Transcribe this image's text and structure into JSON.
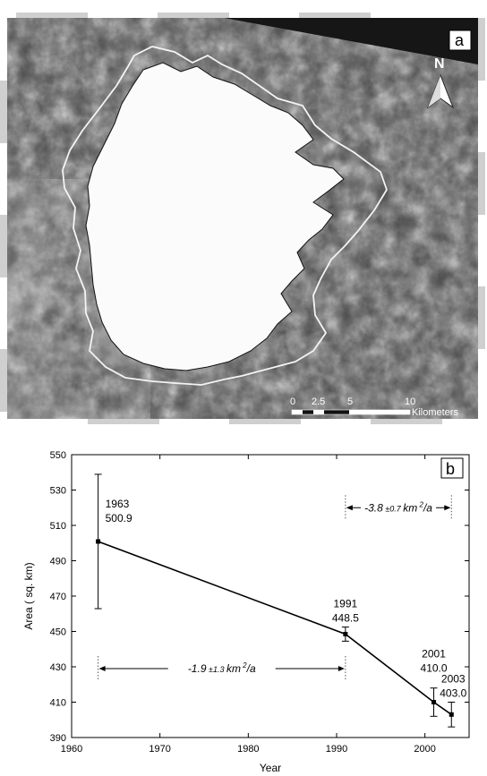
{
  "panel_a": {
    "label": "a",
    "north_label": "N",
    "scale_ticks": [
      "0",
      "2.5",
      "5",
      "10"
    ],
    "scale_unit": "Kilometers"
  },
  "panel_b": {
    "label": "b"
  },
  "chart_data": {
    "type": "line",
    "xlabel": "Year",
    "ylabel": "Area ( sq. km)",
    "xlim": [
      1960,
      2005
    ],
    "ylim": [
      390,
      550
    ],
    "xticks": [
      1960,
      1970,
      1980,
      1990,
      2000
    ],
    "yticks": [
      390,
      410,
      430,
      450,
      470,
      490,
      510,
      530,
      550
    ],
    "grid": false,
    "series": [
      {
        "x": [
          1963,
          1991,
          2001,
          2003
        ],
        "y": [
          500.9,
          448.5,
          410.0,
          403.0
        ],
        "error": [
          38,
          4,
          8,
          7
        ],
        "color": "#000000"
      }
    ],
    "point_labels": [
      {
        "year": "1963",
        "value": "500.9"
      },
      {
        "year": "1991",
        "value": "448.5"
      },
      {
        "year": "2001",
        "value": "410.0"
      },
      {
        "year": "2003",
        "value": "403.0"
      }
    ],
    "annotations": [
      {
        "text": "-1.9",
        "pm": "±1.3",
        "unit": "km",
        "sup": "2",
        "tail": "/a",
        "from": 1963,
        "to": 1991
      },
      {
        "text": "-3.8",
        "pm": "±0.7",
        "unit": "km",
        "sup": "2",
        "tail": "/a",
        "from": 1991,
        "to": 2003
      }
    ]
  }
}
